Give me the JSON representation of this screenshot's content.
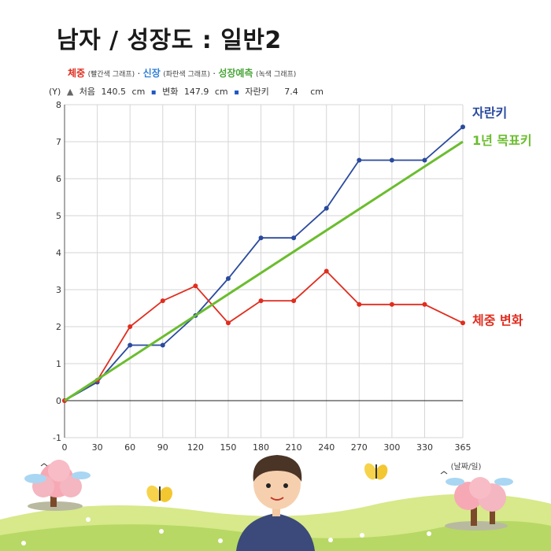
{
  "title": "남자 / 성장도 : 일반2",
  "legend": {
    "weight": {
      "label": "체중",
      "note": "(빨간색 그래프)",
      "color": "#e02d1f"
    },
    "height": {
      "label": "신장",
      "note": "(파란색 그래프)",
      "color": "#2a4a9e"
    },
    "predict": {
      "label": "성장예측",
      "note": "(녹색 그래프)",
      "color": "#6bbd2e"
    },
    "separator": "·"
  },
  "info": {
    "axis_unit": "(Y)",
    "first_label": "처음",
    "first_value": "140.5",
    "unit1": "cm",
    "change_label": "변화",
    "change_value": "147.9",
    "unit2": "cm",
    "growth_label": "자란키",
    "growth_value": "7.4",
    "unit3": "cm"
  },
  "chart_data": {
    "type": "line",
    "x": [
      0,
      30,
      60,
      90,
      120,
      150,
      180,
      210,
      240,
      270,
      300,
      330,
      365
    ],
    "xlabel": "(날짜/일)",
    "ylabel": "(Y)",
    "xlim": [
      0,
      365
    ],
    "ylim": [
      -1,
      8
    ],
    "xticks": [
      0,
      30,
      60,
      90,
      120,
      150,
      180,
      210,
      240,
      270,
      300,
      330,
      365
    ],
    "yticks": [
      -1,
      0,
      1,
      2,
      3,
      4,
      5,
      6,
      7,
      8
    ],
    "grid": true,
    "series": [
      {
        "name": "자란키",
        "color": "#2a4a9e",
        "values": [
          0,
          0.5,
          1.5,
          1.5,
          2.3,
          3.3,
          4.4,
          4.4,
          5.2,
          6.5,
          6.5,
          6.5,
          7.4
        ]
      },
      {
        "name": "체중 변화",
        "color": "#e02d1f",
        "values": [
          0,
          0.55,
          2.0,
          2.7,
          3.1,
          2.1,
          2.7,
          2.7,
          3.5,
          2.6,
          2.6,
          2.6,
          2.1
        ]
      },
      {
        "name": "1년 목표키",
        "color": "#6bbd2e",
        "x": [
          0,
          365
        ],
        "values": [
          0,
          7.0
        ]
      }
    ]
  }
}
